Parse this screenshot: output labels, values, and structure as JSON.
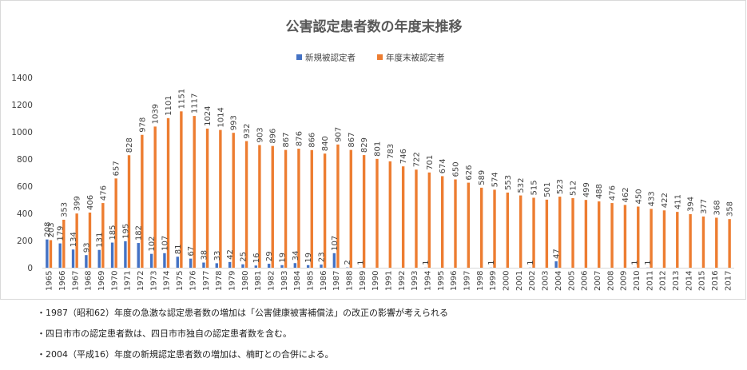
{
  "chart_data": {
    "type": "bar",
    "title": "公害認定患者数の年度末推移",
    "xlabel": "",
    "ylabel": "",
    "ylim": [
      0,
      1400
    ],
    "yticks": [
      0,
      200,
      400,
      600,
      800,
      1000,
      1200,
      1400
    ],
    "grid": false,
    "legend_position": "top-center",
    "categories": [
      "1965",
      "1966",
      "1967",
      "1968",
      "1969",
      "1970",
      "1971",
      "1972",
      "1973",
      "1974",
      "1975",
      "1976",
      "1977",
      "1978",
      "1979",
      "1980",
      "1981",
      "1982",
      "1983",
      "1984",
      "1985",
      "1986",
      "1987",
      "1988",
      "1989",
      "1990",
      "1991",
      "1992",
      "1993",
      "1994",
      "1995",
      "1996",
      "1997",
      "1998",
      "1999",
      "2000",
      "2001",
      "2002",
      "2003",
      "2004",
      "2005",
      "2006",
      "2007",
      "2008",
      "2009",
      "2010",
      "2011",
      "2012",
      "2013",
      "2014",
      "2015",
      "2016",
      "2017"
    ],
    "series": [
      {
        "name": "新規被認定者",
        "color": "#4472c4",
        "values": [
          208,
          179,
          134,
          93,
          131,
          185,
          195,
          182,
          102,
          107,
          81,
          67,
          38,
          33,
          42,
          25,
          16,
          29,
          19,
          34,
          19,
          23,
          107,
          2,
          1,
          null,
          null,
          null,
          null,
          1,
          null,
          null,
          null,
          null,
          1,
          null,
          null,
          1,
          null,
          47,
          null,
          null,
          null,
          null,
          null,
          1,
          1,
          null,
          null,
          null,
          null,
          null,
          null
        ],
        "labels": [
          "208",
          "179",
          "134",
          "93",
          "131",
          "185",
          "195",
          "182",
          "102",
          "107",
          "81",
          "67",
          "38",
          "33",
          "42",
          "25",
          "16",
          "29",
          "19",
          "34",
          "19",
          "23",
          "107",
          "2",
          "1",
          "",
          "",
          "",
          "",
          "1",
          "",
          "",
          "",
          "",
          "1",
          "",
          "",
          "1",
          "",
          "47",
          "",
          "",
          "",
          "",
          "",
          "1",
          "1",
          "",
          "",
          "",
          "",
          "",
          ""
        ]
      },
      {
        "name": "年度末被認定者",
        "color": "#ed7d31",
        "values": [
          203,
          353,
          399,
          406,
          476,
          657,
          828,
          978,
          1039,
          1101,
          1151,
          1117,
          1024,
          1014,
          993,
          932,
          903,
          896,
          867,
          876,
          866,
          840,
          907,
          867,
          829,
          801,
          783,
          746,
          722,
          701,
          674,
          650,
          626,
          589,
          574,
          553,
          532,
          515,
          501,
          523,
          512,
          499,
          488,
          476,
          462,
          450,
          433,
          422,
          411,
          394,
          377,
          368,
          358
        ],
        "labels": [
          "203",
          "353",
          "399",
          "406",
          "476",
          "657",
          "828",
          "978",
          "1039",
          "1101",
          "1151",
          "1117",
          "1024",
          "1014",
          "993",
          "932",
          "903",
          "896",
          "867",
          "876",
          "866",
          "840",
          "907",
          "867",
          "829",
          "801",
          "783",
          "746",
          "722",
          "701",
          "674",
          "650",
          "626",
          "589",
          "574",
          "553",
          "532",
          "515",
          "501",
          "523",
          "512",
          "499",
          "488",
          "476",
          "462",
          "450",
          "433",
          "422",
          "411",
          "394",
          "377",
          "368",
          "358"
        ]
      }
    ]
  },
  "notes": [
    "・1987（昭和62）年度の急激な認定患者数の増加は「公害健康被害補償法」の改正の影響が考えられる",
    "・四日市市の認定患者数は、四日市市独自の認定患者数を含む。",
    "・2004（平成16）年度の新規認定患者数の増加は、楠町との合併による。"
  ]
}
